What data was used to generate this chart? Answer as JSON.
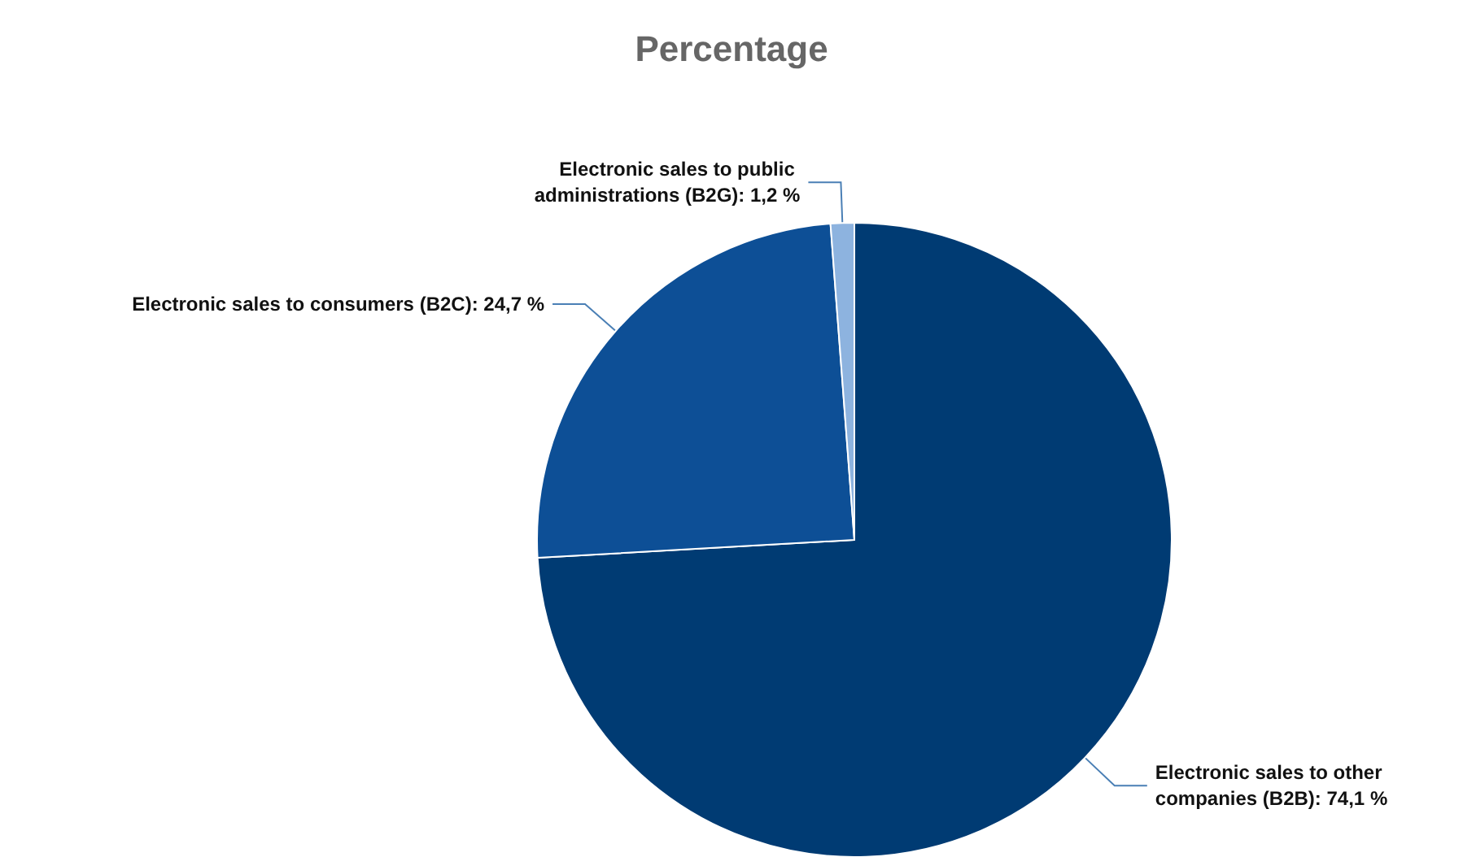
{
  "chart_data": {
    "type": "pie",
    "title": "Percentage",
    "categories": [
      "Electronic sales to other companies (B2B)",
      "Electronic sales to consumers (B2C)",
      "Electronic sales to public administrations (B2G)"
    ],
    "values": [
      74.1,
      24.7,
      1.2
    ],
    "value_labels": [
      "74,1 %",
      "24,7 %",
      "1,2 %"
    ],
    "colors": [
      "#003b73",
      "#0d4f96",
      "#8db3df"
    ]
  }
}
